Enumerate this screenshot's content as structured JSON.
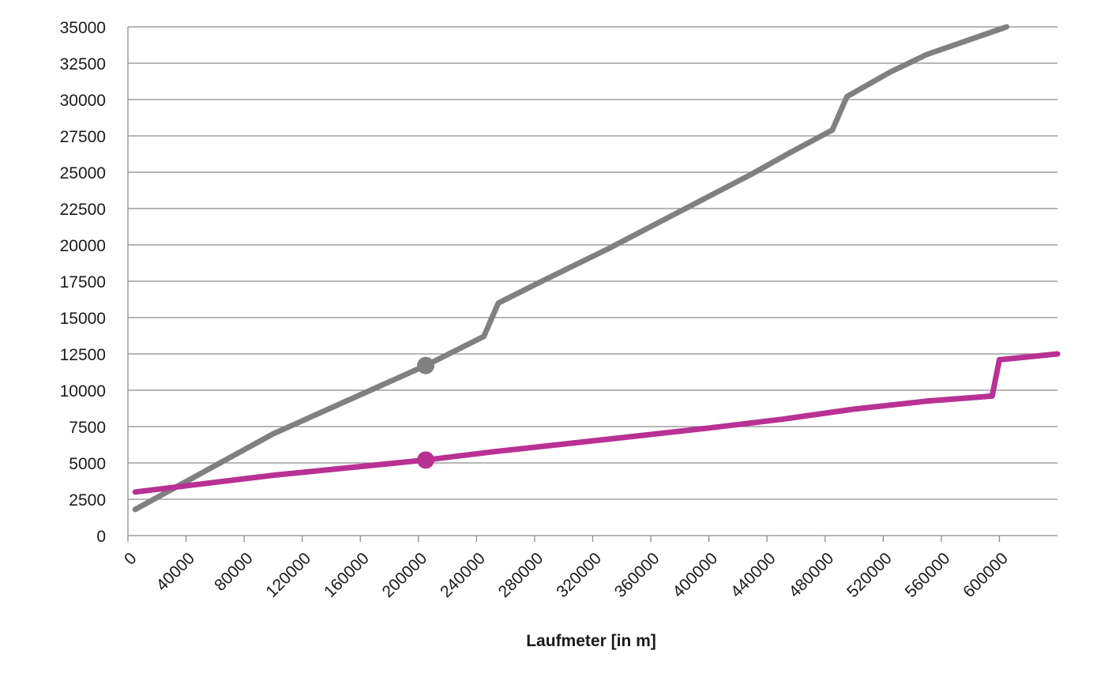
{
  "chart_data": {
    "type": "line",
    "title": "",
    "xlabel": "Laufmeter [in m]",
    "ylabel": "",
    "xlim": [
      0,
      640000
    ],
    "ylim": [
      0,
      35000
    ],
    "x_ticks": [
      0,
      40000,
      80000,
      120000,
      160000,
      200000,
      240000,
      280000,
      320000,
      360000,
      400000,
      440000,
      480000,
      520000,
      560000,
      600000
    ],
    "y_ticks": [
      0,
      2500,
      5000,
      7500,
      10000,
      12500,
      15000,
      17500,
      20000,
      22500,
      25000,
      27500,
      30000,
      32500,
      35000
    ],
    "grid": true,
    "legend": "none",
    "series": [
      {
        "color": "#808080",
        "points": [
          [
            5000,
            1800
          ],
          [
            100000,
            7000
          ],
          [
            205000,
            11700
          ],
          [
            245000,
            13700
          ],
          [
            255000,
            16000
          ],
          [
            285000,
            17500
          ],
          [
            330000,
            19700
          ],
          [
            380000,
            22300
          ],
          [
            430000,
            24900
          ],
          [
            455000,
            26300
          ],
          [
            485000,
            27900
          ],
          [
            495000,
            30200
          ],
          [
            525000,
            31900
          ],
          [
            550000,
            33100
          ],
          [
            605000,
            35000
          ]
        ],
        "markers": [
          [
            205000,
            11700
          ]
        ]
      },
      {
        "color": "#b83193",
        "points": [
          [
            5000,
            3000
          ],
          [
            100000,
            4150
          ],
          [
            205000,
            5200
          ],
          [
            250000,
            5750
          ],
          [
            300000,
            6300
          ],
          [
            350000,
            6850
          ],
          [
            400000,
            7400
          ],
          [
            450000,
            8000
          ],
          [
            500000,
            8700
          ],
          [
            550000,
            9250
          ],
          [
            595000,
            9600
          ],
          [
            600000,
            12100
          ],
          [
            640000,
            12500
          ]
        ],
        "markers": [
          [
            205000,
            5200
          ]
        ]
      }
    ]
  }
}
